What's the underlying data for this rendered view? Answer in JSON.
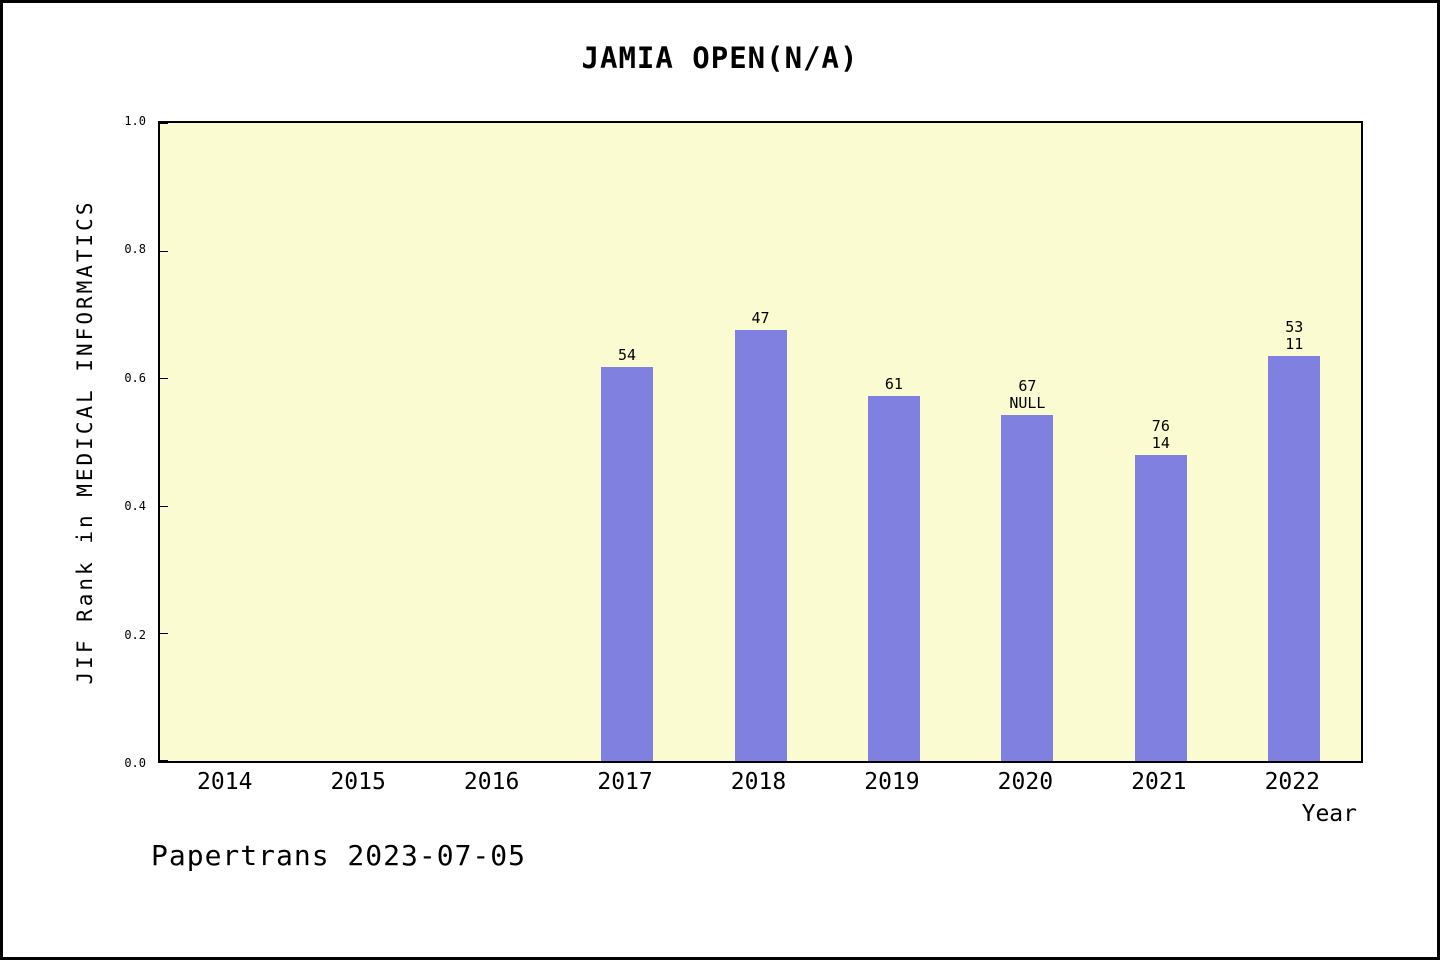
{
  "chart_data": {
    "type": "bar",
    "title": "JAMIA OPEN(N/A)",
    "xlabel": "Year",
    "ylabel": "JIF Rank in MEDICAL INFORMATICS",
    "footer": "Papertrans 2023-07-05",
    "categories": [
      "2014",
      "2015",
      "2016",
      "2017",
      "2018",
      "2019",
      "2020",
      "2021",
      "2022"
    ],
    "values": [
      null,
      null,
      null,
      0.618,
      0.676,
      0.572,
      0.542,
      0.48,
      0.635
    ],
    "bar_labels": [
      [],
      [],
      [],
      [
        "54"
      ],
      [
        "47"
      ],
      [
        "61"
      ],
      [
        "67",
        "NULL"
      ],
      [
        "76",
        "14"
      ],
      [
        "53",
        "11"
      ]
    ],
    "ylim": [
      0,
      1.0
    ],
    "yticks": [
      "0.0",
      "0.2",
      "0.4",
      "0.6",
      "0.8",
      "1.0"
    ],
    "grid": false,
    "legend": null,
    "bar_color": "#8080e0",
    "plot_bg": "#fbfbd2"
  }
}
